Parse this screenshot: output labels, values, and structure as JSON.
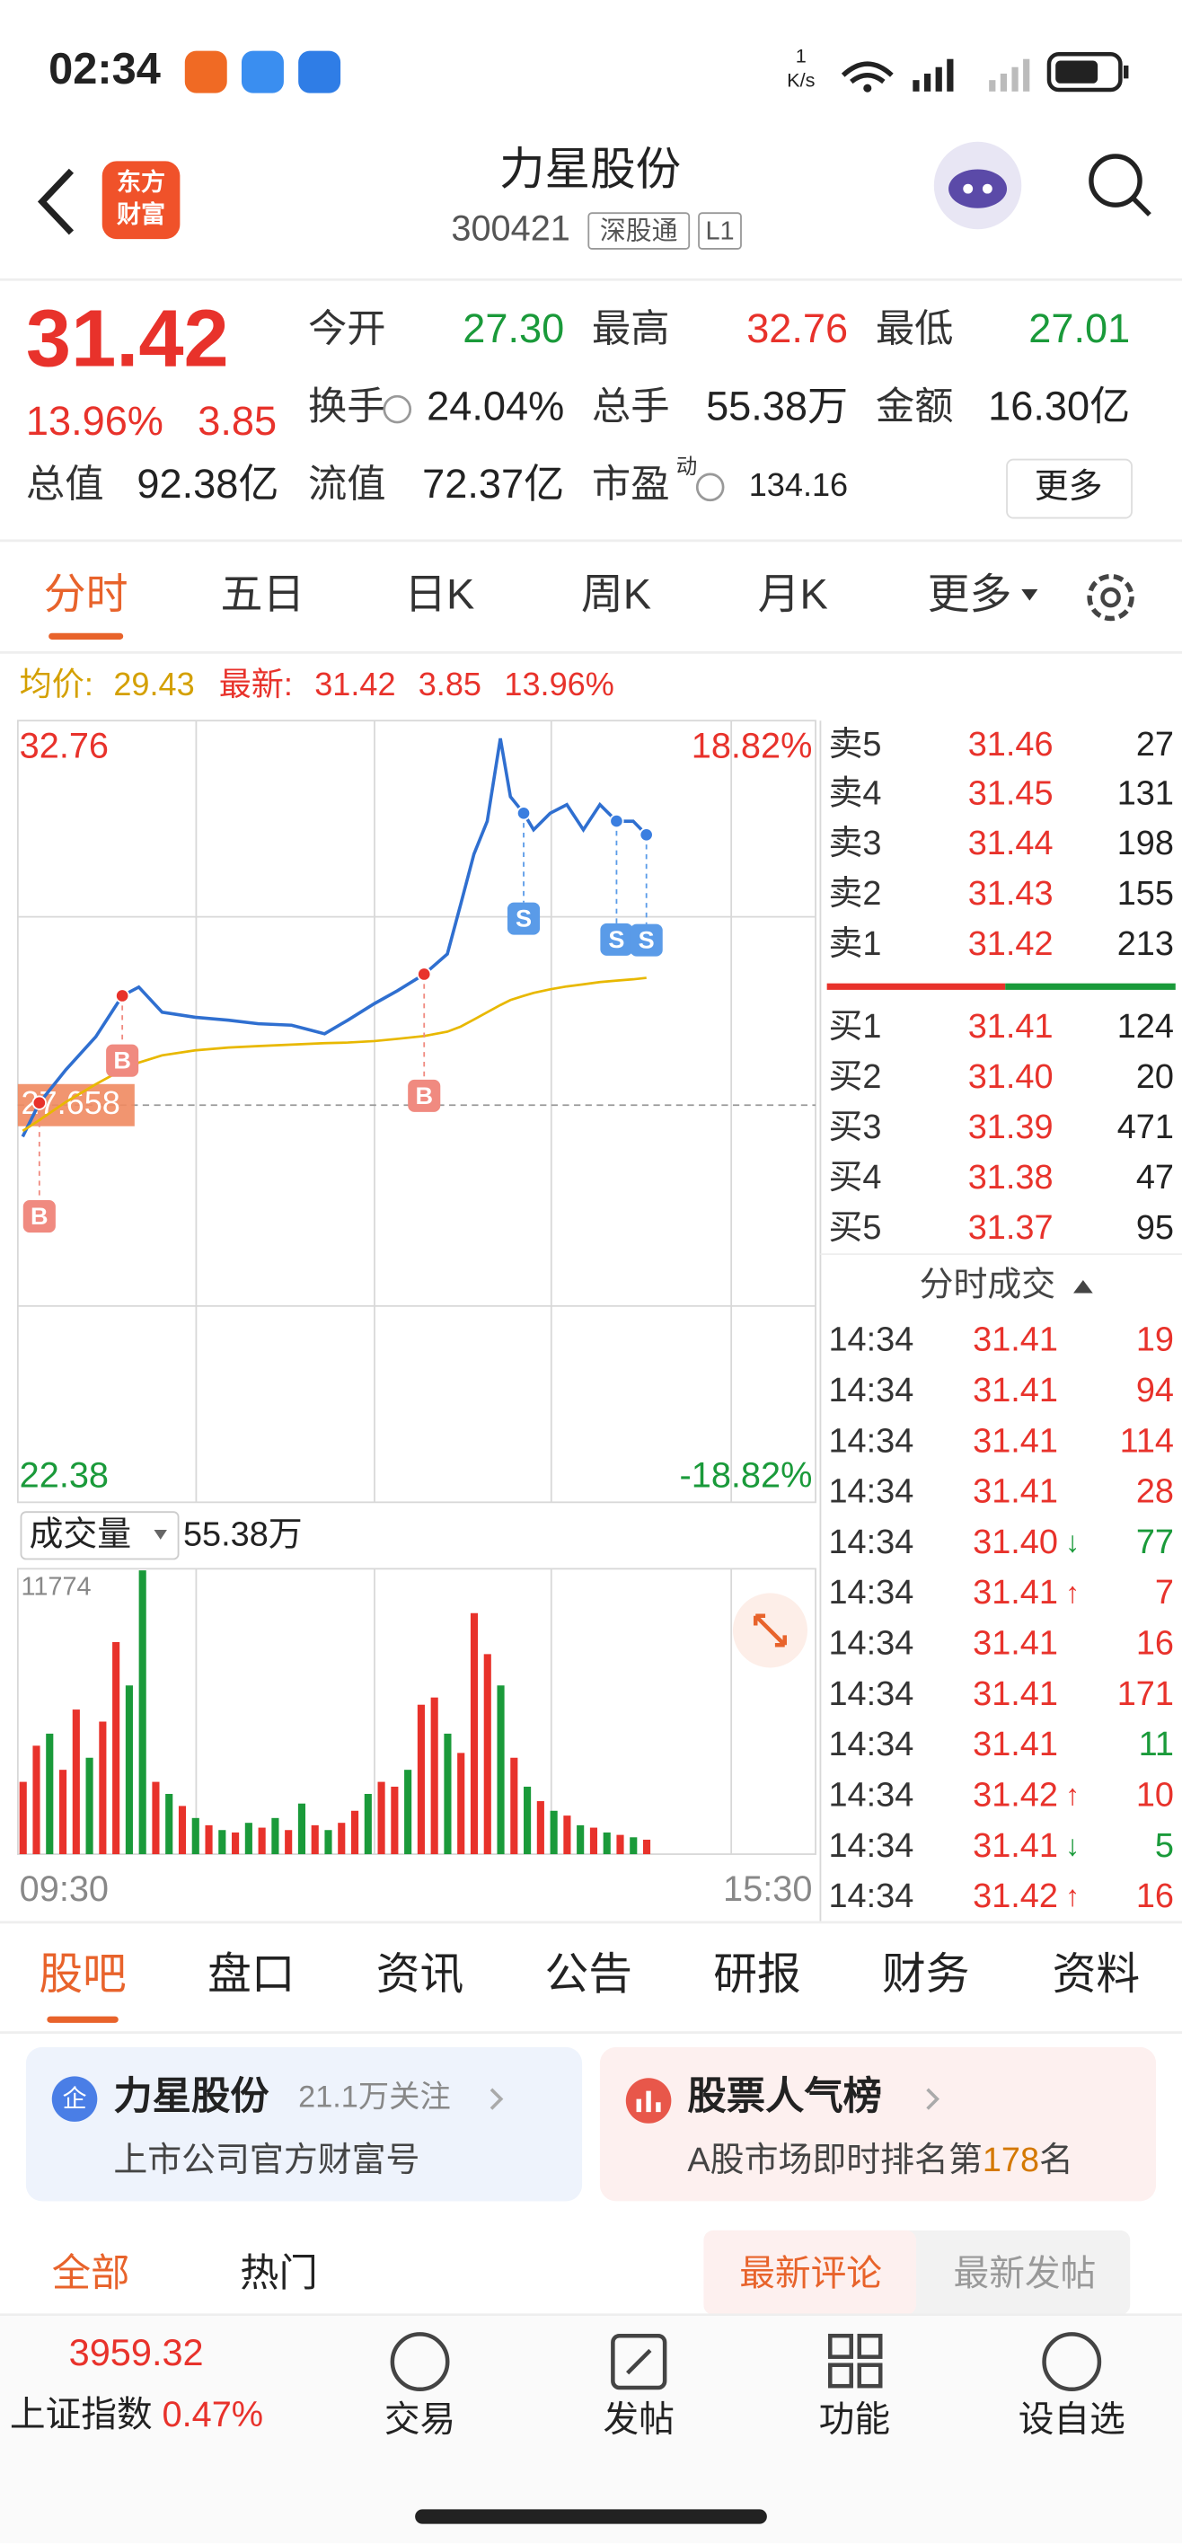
{
  "status_bar": {
    "time": "02:34",
    "speed_value": "1",
    "speed_unit": "K/s"
  },
  "header": {
    "logo": [
      "东方",
      "财富"
    ],
    "title": "力星股份",
    "code": "300421",
    "tags": [
      "深股通",
      "L1"
    ]
  },
  "quote": {
    "price": "31.42",
    "change_pct": "13.96%",
    "change": "3.85",
    "rows": [
      [
        {
          "label": "今开",
          "value": "27.30",
          "color": "#1a9a3a"
        },
        {
          "label": "最高",
          "value": "32.76",
          "color": "#e8322b"
        },
        {
          "label": "最低",
          "value": "27.01",
          "color": "#1a9a3a"
        }
      ],
      [
        {
          "label": "换手",
          "value": "24.04%",
          "color": "#222222"
        },
        {
          "label": "总手",
          "value": "55.38万",
          "color": "#222222"
        },
        {
          "label": "金额",
          "value": "16.30亿",
          "color": "#222222"
        }
      ],
      [
        {
          "label": "总值",
          "value": "92.38亿",
          "color": "#222222"
        },
        {
          "label": "流值",
          "value": "72.37亿",
          "color": "#222222"
        },
        {
          "label": "市盈",
          "sup": "动",
          "value": "134.16",
          "color": "#222222"
        }
      ]
    ],
    "more": "更多"
  },
  "period_tabs": {
    "items": [
      "分时",
      "五日",
      "日K",
      "周K",
      "月K",
      "更多"
    ],
    "active": 0
  },
  "info_line": {
    "avg_label": "均价:",
    "avg": "29.43",
    "latest_label": "最新:",
    "latest": "31.42",
    "latest_change": "3.85",
    "latest_pct": "13.96%"
  },
  "chart_data": [
    {
      "type": "line",
      "xlim": [
        0,
        240
      ],
      "ylim": [
        22.38,
        32.76
      ],
      "yticks": [
        22.38,
        27.658,
        32.76
      ],
      "y2lim": [
        -18.82,
        18.82
      ],
      "y2ticks": [
        {
          "value": -18.82,
          "label": "-18.82%"
        },
        {
          "value": 18.82,
          "label": "18.82%"
        }
      ],
      "x": [
        1,
        6,
        14,
        23,
        31,
        36,
        43,
        53,
        63,
        72,
        82,
        92,
        99,
        107,
        114,
        122,
        129,
        133,
        137,
        141,
        145,
        148,
        152,
        155,
        160,
        165,
        170,
        175,
        180,
        185,
        189
      ],
      "series": [
        {
          "color": "#2f6fd0",
          "values": [
            27.22,
            27.69,
            28.15,
            28.61,
            29.18,
            29.3,
            28.95,
            28.88,
            28.84,
            28.79,
            28.77,
            28.65,
            28.84,
            29.07,
            29.25,
            29.48,
            29.76,
            30.45,
            31.15,
            31.61,
            32.76,
            31.95,
            31.72,
            31.49,
            31.72,
            31.84,
            31.49,
            31.84,
            31.61,
            31.61,
            31.42
          ]
        },
        {
          "color": "#e8b800",
          "values": [
            27.3,
            27.45,
            27.7,
            27.95,
            28.15,
            28.25,
            28.35,
            28.42,
            28.46,
            28.48,
            28.5,
            28.52,
            28.53,
            28.55,
            28.58,
            28.62,
            28.68,
            28.75,
            28.85,
            28.95,
            29.05,
            29.12,
            29.18,
            29.22,
            29.27,
            29.31,
            29.34,
            29.37,
            29.39,
            29.41,
            29.43
          ]
        }
      ],
      "trades": [
        {
          "side": "B",
          "x": 6,
          "color": "#f08a80"
        },
        {
          "side": "B",
          "x": 31,
          "color": "#f08a80"
        },
        {
          "side": "B",
          "x": 122,
          "color": "#f08a80"
        },
        {
          "side": "S",
          "x": 152,
          "color": "#5a9be8"
        },
        {
          "side": "S",
          "x": 180,
          "color": "#5a9be8"
        },
        {
          "side": "S",
          "x": 189,
          "color": "#5a9be8"
        }
      ]
    },
    {
      "type": "bar",
      "title": "成交量",
      "total": "55.38万",
      "xlim": [
        0,
        240
      ],
      "ylim": [
        0,
        11774
      ],
      "yticks": [
        11774
      ],
      "xticks": [
        {
          "value": 0,
          "label": "09:30"
        },
        {
          "value": 240,
          "label": "15:30"
        }
      ],
      "x": [
        0,
        4,
        8,
        12,
        16,
        20,
        24,
        28,
        32,
        36,
        40,
        44,
        48,
        52,
        56,
        60,
        64,
        68,
        72,
        76,
        80,
        84,
        88,
        92,
        96,
        100,
        104,
        108,
        112,
        116,
        120,
        124,
        128,
        132,
        136,
        140,
        144,
        148,
        152,
        156,
        160,
        164,
        168,
        172,
        176,
        180,
        184,
        188
      ],
      "values": [
        3000,
        4500,
        5000,
        3500,
        6000,
        4000,
        5500,
        8800,
        7000,
        11774,
        3000,
        2500,
        2000,
        1500,
        1200,
        1000,
        900,
        1300,
        1100,
        1500,
        1000,
        2100,
        1200,
        1000,
        1300,
        1800,
        2500,
        3000,
        2800,
        3500,
        6200,
        6500,
        5000,
        4200,
        10000,
        8300,
        7000,
        4000,
        2800,
        2200,
        1800,
        1600,
        1200,
        1100,
        900,
        800,
        700,
        600
      ],
      "colors": [
        "#e8322b",
        "#e8322b",
        "#1a9a3a",
        "#e8322b",
        "#e8322b",
        "#1a9a3a",
        "#e8322b",
        "#e8322b",
        "#1a9a3a",
        "#1a9a3a",
        "#e8322b",
        "#1a9a3a",
        "#e8322b",
        "#1a9a3a",
        "#e8322b",
        "#1a9a3a",
        "#e8322b",
        "#1a9a3a",
        "#e8322b",
        "#1a9a3a",
        "#e8322b",
        "#1a9a3a",
        "#e8322b",
        "#1a9a3a",
        "#e8322b",
        "#e8322b",
        "#1a9a3a",
        "#e8322b",
        "#e8322b",
        "#1a9a3a",
        "#e8322b",
        "#e8322b",
        "#1a9a3a",
        "#e8322b",
        "#e8322b",
        "#e8322b",
        "#1a9a3a",
        "#e8322b",
        "#1a9a3a",
        "#e8322b",
        "#1a9a3a",
        "#e8322b",
        "#1a9a3a",
        "#e8322b",
        "#1a9a3a",
        "#e8322b",
        "#1a9a3a",
        "#e8322b"
      ]
    }
  ],
  "order_book": {
    "asks": [
      {
        "label": "卖5",
        "price": "31.46",
        "volume": "27"
      },
      {
        "label": "卖4",
        "price": "31.45",
        "volume": "131"
      },
      {
        "label": "卖3",
        "price": "31.44",
        "volume": "198"
      },
      {
        "label": "卖2",
        "price": "31.43",
        "volume": "155"
      },
      {
        "label": "卖1",
        "price": "31.42",
        "volume": "213"
      }
    ],
    "bids": [
      {
        "label": "买1",
        "price": "31.41",
        "volume": "124"
      },
      {
        "label": "买2",
        "price": "31.40",
        "volume": "20"
      },
      {
        "label": "买3",
        "price": "31.39",
        "volume": "471"
      },
      {
        "label": "买4",
        "price": "31.38",
        "volume": "47"
      },
      {
        "label": "买5",
        "price": "31.37",
        "volume": "95"
      }
    ]
  },
  "trade_list": {
    "title": "分时成交",
    "rows": [
      {
        "time": "14:34",
        "price": "31.41",
        "volume": "19",
        "color": "#e8322b"
      },
      {
        "time": "14:34",
        "price": "31.41",
        "volume": "94",
        "color": "#e8322b"
      },
      {
        "time": "14:34",
        "price": "31.41",
        "volume": "114",
        "color": "#e8322b"
      },
      {
        "time": "14:34",
        "price": "31.41",
        "volume": "28",
        "color": "#e8322b"
      },
      {
        "time": "14:34",
        "price": "31.40",
        "dir": "↓",
        "volume": "77",
        "color": "#1a9a3a"
      },
      {
        "time": "14:34",
        "price": "31.41",
        "dir": "↑",
        "volume": "7",
        "color": "#e8322b"
      },
      {
        "time": "14:34",
        "price": "31.41",
        "volume": "16",
        "color": "#e8322b"
      },
      {
        "time": "14:34",
        "price": "31.41",
        "volume": "171",
        "color": "#e8322b"
      },
      {
        "time": "14:34",
        "price": "31.41",
        "volume": "11",
        "color": "#1a9a3a"
      },
      {
        "time": "14:34",
        "price": "31.42",
        "dir": "↑",
        "volume": "10",
        "color": "#e8322b"
      },
      {
        "time": "14:34",
        "price": "31.41",
        "dir": "↓",
        "volume": "5",
        "color": "#1a9a3a"
      },
      {
        "time": "14:34",
        "price": "31.42",
        "dir": "↑",
        "volume": "16",
        "color": "#e8322b"
      }
    ]
  },
  "section_tabs": {
    "items": [
      "股吧",
      "盘口",
      "资讯",
      "公告",
      "研报",
      "财务",
      "资料"
    ],
    "active": 0
  },
  "cards": [
    {
      "icon": "企",
      "title": "力星股份",
      "followers": "21.1万关注",
      "subtitle": "上市公司官方财富号"
    },
    {
      "title": "股票人气榜",
      "subtitle_prefix": "A股市场即时排名第",
      "rank": "178",
      "subtitle_suffix": "名"
    }
  ],
  "feed_tabs": {
    "left": [
      "全部",
      "热门"
    ],
    "right": [
      "最新评论",
      "最新发帖"
    ]
  },
  "bottom_nav": {
    "index_value": "3959.32",
    "index_name": "上证指数",
    "index_change": "0.47%",
    "items": [
      "交易",
      "发帖",
      "功能",
      "设自选"
    ]
  }
}
